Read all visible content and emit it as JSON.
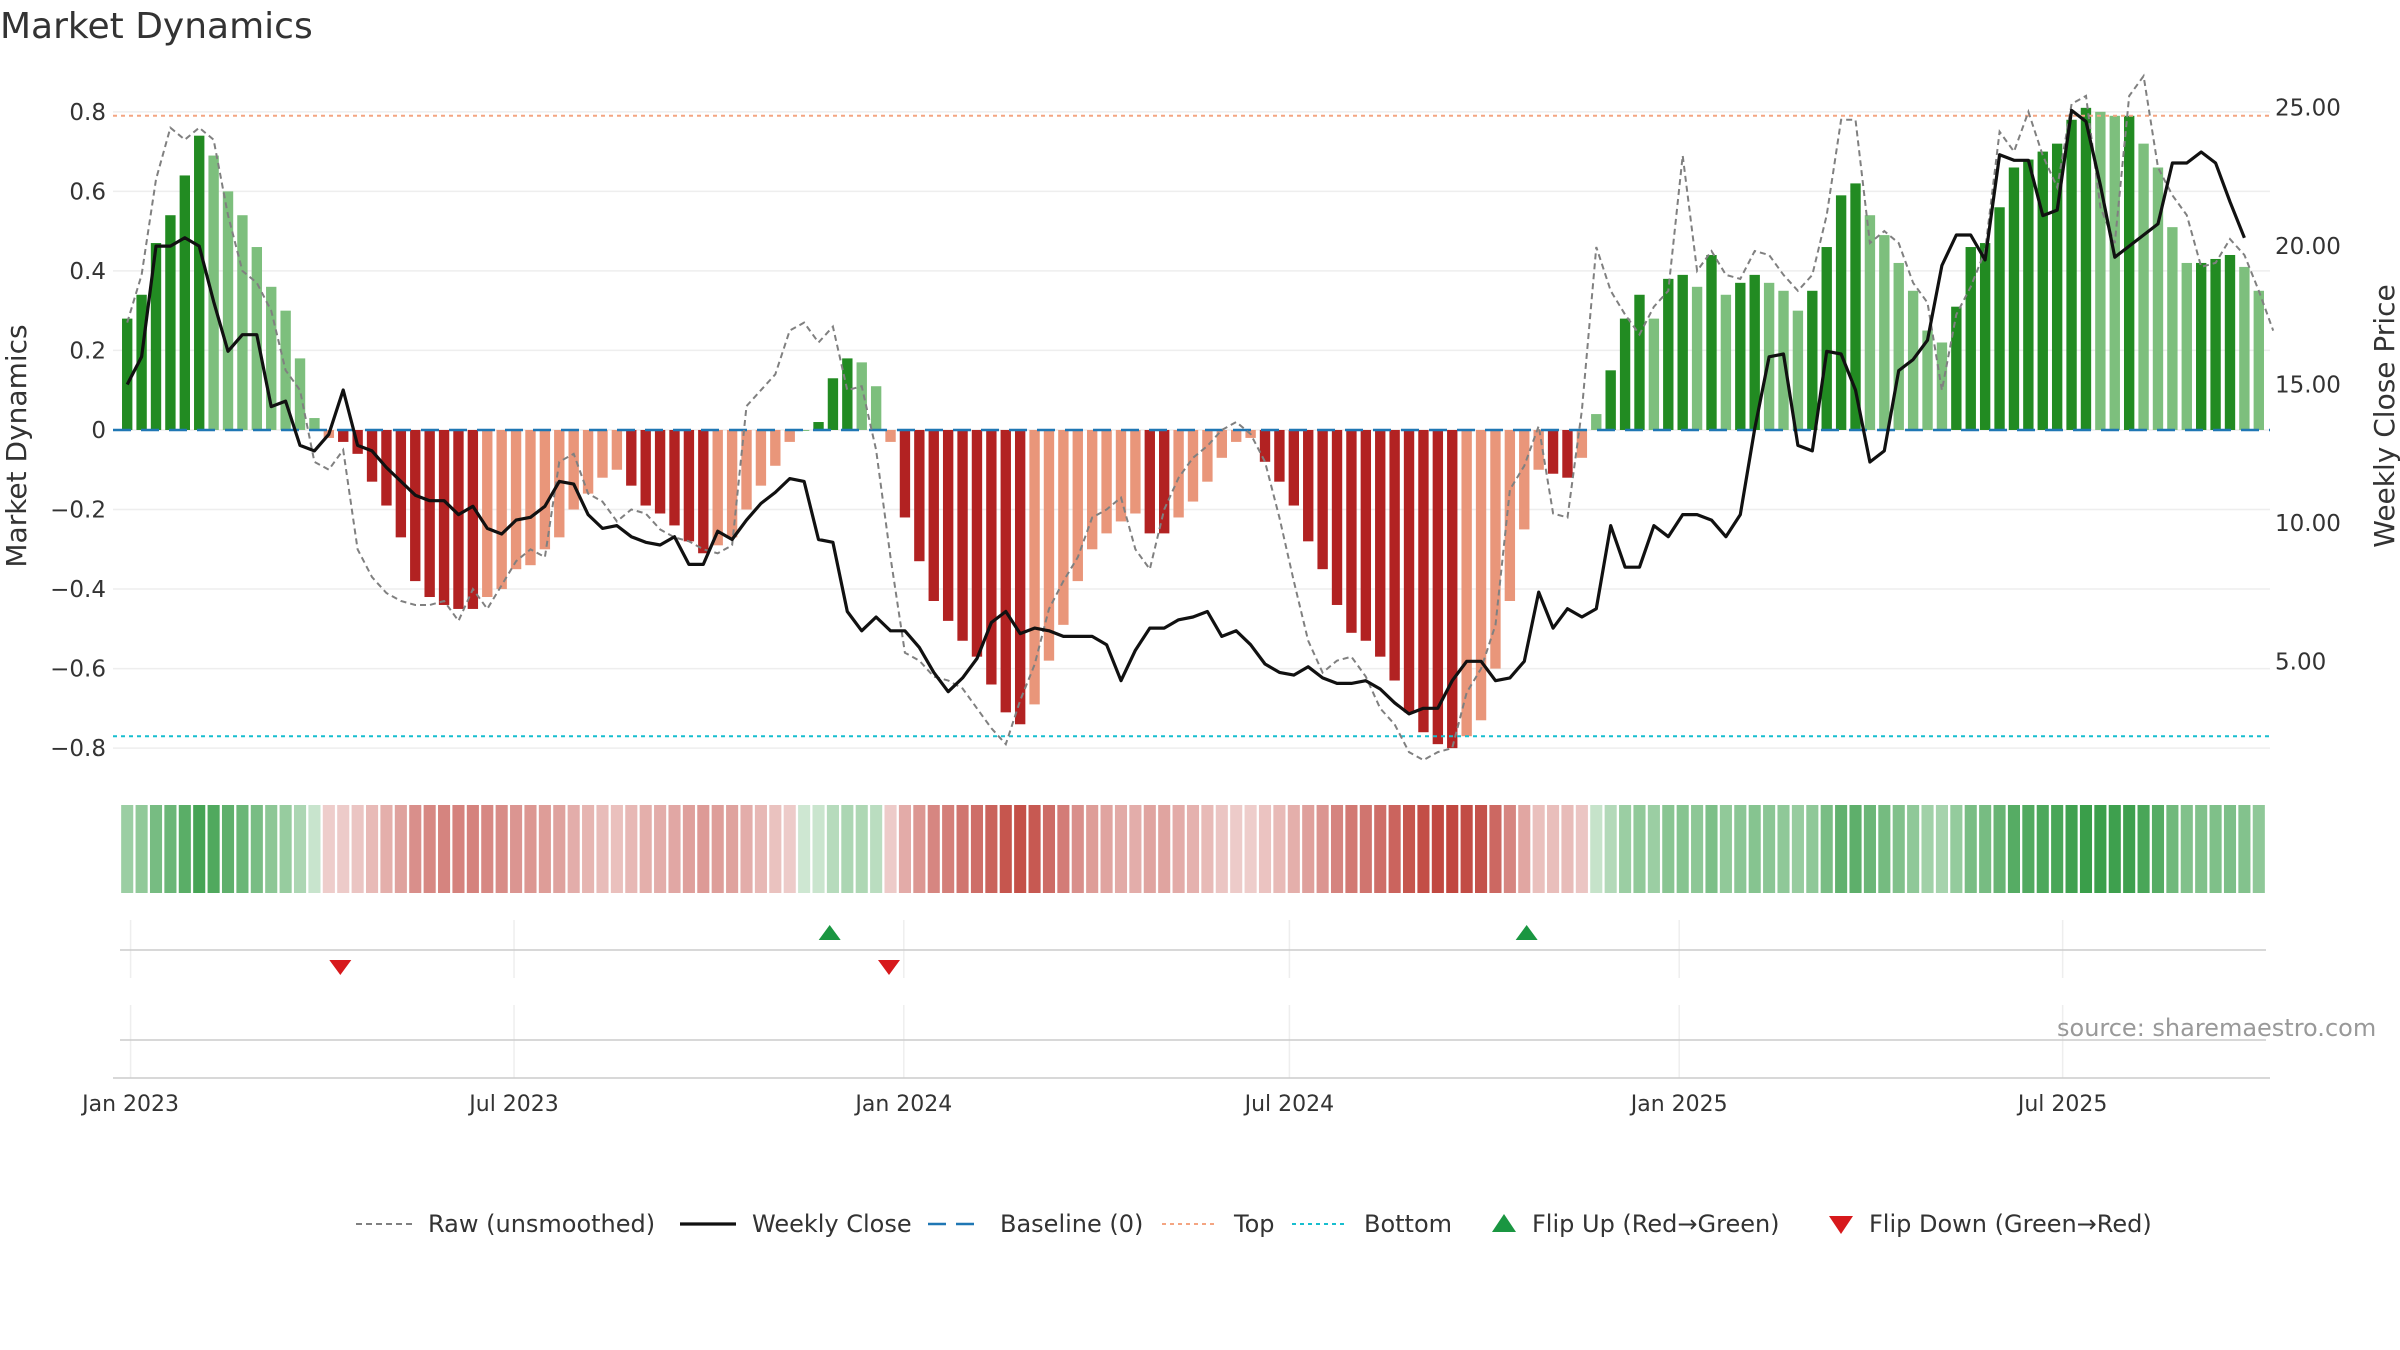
{
  "title": "Market Dynamics",
  "source": "source: sharemaestro.com",
  "colors": {
    "bar_pos_strong": "#228b22",
    "bar_pos_weak": "#7dbf7d",
    "bar_neg_strong": "#b22222",
    "bar_neg_weak": "#e9967a",
    "raw_line": "#808080",
    "close_line": "#111111",
    "baseline": "#1f77b4",
    "top_line": "#f4a582",
    "bottom_line": "#17becf",
    "flip_up": "#1a9641",
    "flip_down": "#d7191c",
    "strip_green": "#3a9e4a",
    "strip_red": "#c0453d"
  },
  "chart_data": [
    {
      "type": "bar",
      "name": "main",
      "ylabel": "Market Dynamics",
      "y2label": "Weekly Close Price",
      "ylim": [
        -0.86,
        0.88
      ],
      "y2lim": [
        1.0,
        26.0
      ],
      "y_ticks": [
        "0.8",
        "0.6",
        "0.4",
        "0.2",
        "0",
        "−0.2",
        "−0.4",
        "−0.6",
        "−0.8"
      ],
      "y_tick_values": [
        0.8,
        0.6,
        0.4,
        0.2,
        0,
        -0.2,
        -0.4,
        -0.6,
        -0.8
      ],
      "y2_ticks": [
        "25.00",
        "20.00",
        "15.00",
        "10.00",
        "5.00"
      ],
      "y2_tick_values": [
        25,
        20,
        15,
        10,
        5
      ],
      "x_ticks": [
        "Jan 2023",
        "Jul 2023",
        "Jan 2024",
        "Jul 2024",
        "Jan 2025",
        "Jul 2025"
      ],
      "x_tick_values": [
        "2023-01-01",
        "2023-07-01",
        "2024-01-01",
        "2024-07-01",
        "2025-01-01",
        "2025-07-01"
      ],
      "x_range": [
        "2022-12-27",
        "2025-10-05"
      ],
      "grid": true,
      "top_level": 0.79,
      "bottom_level": -0.77,
      "dynamics": [
        0.28,
        0.34,
        0.47,
        0.54,
        0.64,
        0.74,
        0.69,
        0.6,
        0.54,
        0.46,
        0.36,
        0.3,
        0.18,
        0.03,
        -0.02,
        -0.03,
        -0.06,
        -0.13,
        -0.19,
        -0.27,
        -0.38,
        -0.42,
        -0.44,
        -0.45,
        -0.45,
        -0.42,
        -0.4,
        -0.35,
        -0.34,
        -0.3,
        -0.27,
        -0.2,
        -0.16,
        -0.12,
        -0.1,
        -0.14,
        -0.19,
        -0.21,
        -0.24,
        -0.28,
        -0.31,
        -0.29,
        -0.27,
        -0.2,
        -0.14,
        -0.09,
        -0.03,
        0.0,
        0.02,
        0.13,
        0.18,
        0.17,
        0.11,
        -0.03,
        -0.22,
        -0.33,
        -0.43,
        -0.48,
        -0.53,
        -0.57,
        -0.64,
        -0.71,
        -0.74,
        -0.69,
        -0.58,
        -0.49,
        -0.38,
        -0.3,
        -0.26,
        -0.23,
        -0.21,
        -0.26,
        -0.26,
        -0.22,
        -0.18,
        -0.13,
        -0.07,
        -0.03,
        -0.02,
        -0.08,
        -0.13,
        -0.19,
        -0.28,
        -0.35,
        -0.44,
        -0.51,
        -0.53,
        -0.57,
        -0.63,
        -0.71,
        -0.76,
        -0.79,
        -0.8,
        -0.77,
        -0.73,
        -0.6,
        -0.43,
        -0.25,
        -0.1,
        -0.11,
        -0.12,
        -0.07,
        0.04,
        0.15,
        0.28,
        0.34,
        0.28,
        0.38,
        0.39,
        0.36,
        0.44,
        0.34,
        0.37,
        0.39,
        0.37,
        0.35,
        0.3,
        0.35,
        0.46,
        0.59,
        0.62,
        0.54,
        0.49,
        0.42,
        0.35,
        0.25,
        0.22,
        0.31,
        0.46,
        0.47,
        0.56,
        0.66,
        0.68,
        0.7,
        0.72,
        0.78,
        0.81,
        0.8,
        0.79,
        0.79,
        0.72,
        0.66,
        0.51,
        0.42,
        0.42,
        0.43,
        0.44,
        0.41,
        0.35
      ],
      "raw": [
        0.27,
        0.39,
        0.63,
        0.76,
        0.73,
        0.76,
        0.73,
        0.54,
        0.4,
        0.37,
        0.3,
        0.15,
        0.1,
        -0.08,
        -0.1,
        -0.05,
        -0.3,
        -0.37,
        -0.41,
        -0.43,
        -0.44,
        -0.44,
        -0.43,
        -0.48,
        -0.4,
        -0.45,
        -0.39,
        -0.33,
        -0.3,
        -0.32,
        -0.08,
        -0.06,
        -0.16,
        -0.18,
        -0.23,
        -0.2,
        -0.21,
        -0.25,
        -0.27,
        -0.28,
        -0.3,
        -0.31,
        -0.29,
        0.06,
        0.1,
        0.14,
        0.25,
        0.27,
        0.22,
        0.26,
        0.1,
        0.11,
        -0.05,
        -0.32,
        -0.56,
        -0.58,
        -0.62,
        -0.63,
        -0.65,
        -0.7,
        -0.75,
        -0.79,
        -0.68,
        -0.59,
        -0.45,
        -0.38,
        -0.32,
        -0.22,
        -0.2,
        -0.17,
        -0.3,
        -0.35,
        -0.2,
        -0.12,
        -0.07,
        -0.04,
        0.0,
        0.02,
        -0.01,
        -0.08,
        -0.22,
        -0.38,
        -0.53,
        -0.61,
        -0.58,
        -0.57,
        -0.62,
        -0.7,
        -0.74,
        -0.81,
        -0.83,
        -0.81,
        -0.8,
        -0.66,
        -0.6,
        -0.49,
        -0.15,
        -0.09,
        0.01,
        -0.21,
        -0.22,
        0.05,
        0.46,
        0.35,
        0.29,
        0.24,
        0.31,
        0.35,
        0.69,
        0.4,
        0.45,
        0.39,
        0.38,
        0.45,
        0.44,
        0.39,
        0.35,
        0.39,
        0.54,
        0.78,
        0.78,
        0.47,
        0.5,
        0.47,
        0.37,
        0.32,
        0.1,
        0.29,
        0.36,
        0.45,
        0.75,
        0.7,
        0.8,
        0.69,
        0.61,
        0.82,
        0.84,
        0.56,
        0.47,
        0.84,
        0.89,
        0.66,
        0.59,
        0.54,
        0.41,
        0.42,
        0.48,
        0.44,
        0.35,
        0.25
      ],
      "close": [
        15.0,
        16.0,
        20.0,
        20.0,
        20.3,
        20.0,
        18.0,
        16.2,
        16.8,
        16.8,
        14.2,
        14.4,
        12.8,
        12.6,
        13.2,
        14.8,
        12.8,
        12.6,
        12.0,
        11.5,
        11.0,
        10.8,
        10.8,
        10.3,
        10.6,
        9.8,
        9.6,
        10.1,
        10.2,
        10.6,
        11.5,
        11.4,
        10.3,
        9.8,
        9.9,
        9.5,
        9.3,
        9.2,
        9.5,
        8.5,
        8.5,
        9.7,
        9.4,
        10.1,
        10.7,
        11.1,
        11.6,
        11.5,
        9.4,
        9.3,
        6.8,
        6.1,
        6.6,
        6.1,
        6.1,
        5.5,
        4.6,
        3.9,
        4.4,
        5.1,
        6.4,
        6.8,
        6.0,
        6.2,
        6.1,
        5.9,
        5.9,
        5.9,
        5.6,
        4.3,
        5.4,
        6.2,
        6.2,
        6.5,
        6.6,
        6.8,
        5.9,
        6.1,
        5.6,
        4.9,
        4.6,
        4.5,
        4.8,
        4.4,
        4.2,
        4.2,
        4.3,
        4.0,
        3.5,
        3.1,
        3.3,
        3.3,
        4.3,
        5.0,
        5.0,
        4.3,
        4.4,
        5.0,
        7.5,
        6.2,
        6.9,
        6.6,
        6.9,
        9.9,
        8.4,
        8.4,
        9.9,
        9.5,
        10.3,
        10.3,
        10.1,
        9.5,
        10.3,
        13.4,
        16.0,
        16.1,
        12.8,
        12.6,
        16.2,
        16.1,
        14.8,
        12.2,
        12.6,
        15.5,
        15.9,
        16.6,
        19.3,
        20.4,
        20.4,
        19.5,
        23.3,
        23.1,
        23.1,
        21.1,
        21.3,
        24.9,
        24.5,
        22.2,
        19.6,
        20.0,
        20.4,
        20.8,
        23.0,
        23.0,
        23.4,
        23.0,
        21.6,
        20.3
      ],
      "legend": [
        {
          "label": "Raw (unsmoothed)",
          "kind": "dashed-gray"
        },
        {
          "label": "Weekly Close",
          "kind": "solid-black"
        },
        {
          "label": "Baseline (0)",
          "kind": "dashed-blue"
        },
        {
          "label": "Top",
          "kind": "dotted-orange"
        },
        {
          "label": "Bottom",
          "kind": "dotted-cyan"
        },
        {
          "label": "Flip Up (Red→Green)",
          "kind": "triangle-up"
        },
        {
          "label": "Flip Down (Green→Red)",
          "kind": "triangle-down"
        }
      ],
      "legend_position": "bottom-center"
    },
    {
      "type": "heatmap",
      "name": "intensity-strip",
      "note_source": "one cell per week, color from dynamics sign, opacity from magnitude"
    },
    {
      "type": "scatter",
      "name": "flip-markers",
      "flip_up_dates": [
        "2023-11-27",
        "2024-10-21"
      ],
      "flip_down_dates": [
        "2023-04-10",
        "2023-12-25"
      ]
    }
  ]
}
